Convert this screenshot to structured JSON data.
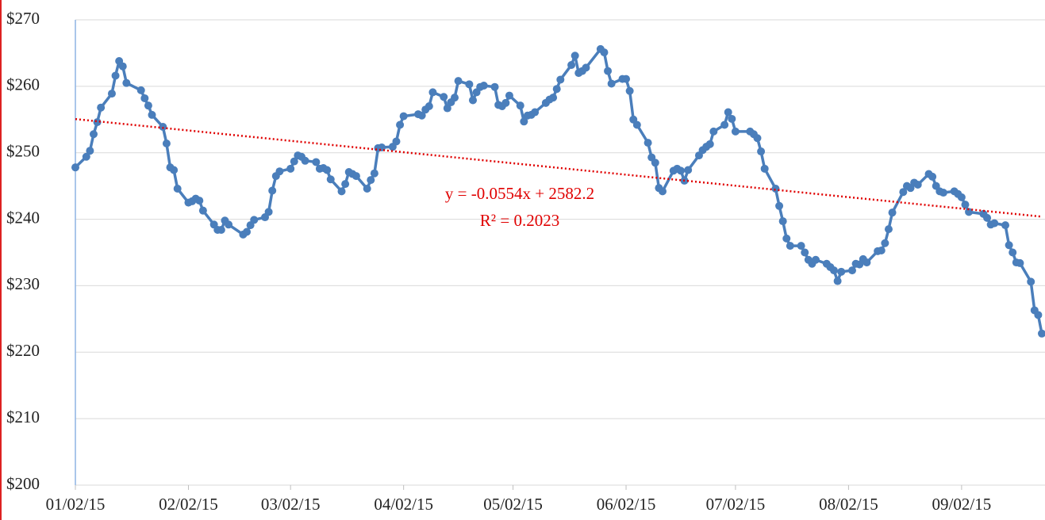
{
  "chart_data": {
    "type": "line",
    "x": [
      42006,
      42009,
      42010,
      42011,
      42012,
      42013,
      42016,
      42017,
      42018,
      42019,
      42020,
      42024,
      42025,
      42026,
      42027,
      42030,
      42031,
      42032,
      42033,
      42034,
      42037,
      42038,
      42039,
      42040,
      42041,
      42044,
      42045,
      42046,
      42047,
      42048,
      42052,
      42053,
      42054,
      42055,
      42058,
      42059,
      42060,
      42061,
      42062,
      42065,
      42066,
      42067,
      42068,
      42069,
      42072,
      42073,
      42074,
      42075,
      42076,
      42079,
      42080,
      42081,
      42082,
      42083,
      42086,
      42087,
      42088,
      42089,
      42090,
      42093,
      42094,
      42095,
      42096,
      42100,
      42101,
      42102,
      42103,
      42104,
      42107,
      42108,
      42109,
      42110,
      42111,
      42114,
      42115,
      42116,
      42117,
      42118,
      42121,
      42122,
      42123,
      42124,
      42125,
      42128,
      42129,
      42130,
      42131,
      42132,
      42135,
      42136,
      42137,
      42138,
      42139,
      42142,
      42143,
      42144,
      42145,
      42146,
      42150,
      42151,
      42152,
      42153,
      42156,
      42157,
      42158,
      42159,
      42160,
      42163,
      42164,
      42165,
      42166,
      42167,
      42170,
      42171,
      42172,
      42173,
      42174,
      42177,
      42178,
      42179,
      42180,
      42181,
      42184,
      42185,
      42186,
      42187,
      42191,
      42192,
      42193,
      42194,
      42195,
      42198,
      42199,
      42200,
      42201,
      42202,
      42205,
      42206,
      42207,
      42208,
      42209,
      42212,
      42213,
      42214,
      42215,
      42216,
      42219,
      42220,
      42221,
      42222,
      42223,
      42226,
      42227,
      42228,
      42229,
      42230,
      42233,
      42234,
      42235,
      42236,
      42237,
      42240,
      42241,
      42242,
      42243,
      42244,
      42247,
      42248,
      42249,
      42250,
      42251,
      42255,
      42256,
      42257,
      42258,
      42261,
      42262,
      42263,
      42264,
      42265,
      42268,
      42269,
      42270,
      42271
    ],
    "series": [
      {
        "color": "#4a7ebb",
        "values": [
          247.8,
          249.4,
          250.3,
          252.8,
          254.6,
          256.8,
          258.9,
          261.6,
          263.8,
          263,
          260.5,
          259.4,
          258.2,
          257.1,
          255.7,
          253.9,
          251.4,
          247.8,
          247.4,
          244.6,
          242.5,
          242.7,
          243.1,
          242.8,
          241.3,
          239.2,
          238.4,
          238.4,
          239.8,
          239.2,
          237.7,
          238.1,
          239.1,
          239.9,
          240.3,
          241.1,
          244.3,
          246.5,
          247.2,
          247.6,
          248.7,
          249.6,
          249.4,
          248.8,
          248.6,
          247.6,
          247.7,
          247.4,
          246,
          244.2,
          245.3,
          247.1,
          246.8,
          246.5,
          244.6,
          245.9,
          246.9,
          250.7,
          250.8,
          250.9,
          251.7,
          254.2,
          255.5,
          255.8,
          255.6,
          256.5,
          257,
          259.1,
          258.4,
          256.7,
          257.6,
          258.3,
          260.8,
          260.3,
          257.9,
          259.1,
          259.9,
          260.1,
          259.9,
          257.2,
          257,
          257.5,
          258.6,
          257.1,
          254.7,
          255.6,
          255.7,
          256.1,
          257.5,
          258,
          258.3,
          259.6,
          261,
          263.2,
          264.6,
          262,
          262.3,
          262.8,
          265.6,
          265.1,
          262.3,
          260.4,
          261.1,
          261.1,
          259.3,
          255,
          254.2,
          251.5,
          249.3,
          248.5,
          244.7,
          244.2,
          247.3,
          247.6,
          247.3,
          245.8,
          247.4,
          249.6,
          250.4,
          250.9,
          251.3,
          253.2,
          254.2,
          256.1,
          255.1,
          253.2,
          253.2,
          252.8,
          252.2,
          250.2,
          247.6,
          244.6,
          242,
          239.7,
          237.1,
          236,
          236,
          235,
          233.9,
          233.3,
          233.9,
          233.3,
          232.8,
          232.3,
          230.7,
          232.1,
          232.3,
          233.3,
          233.2,
          234,
          233.5,
          235.2,
          235.3,
          236.4,
          238.5,
          241,
          244.1,
          245,
          244.7,
          245.5,
          245.2,
          246.8,
          246.4,
          245,
          244.2,
          244,
          244.2,
          243.8,
          243.3,
          242.2,
          241.1,
          240.8,
          240.2,
          239.2,
          239.4,
          239.1,
          236.1,
          235,
          233.5,
          233.4,
          230.6,
          226.3,
          225.6,
          222.8
        ]
      }
    ],
    "xlim": [
      42006,
      42271
    ],
    "xticks": [
      {
        "value": 42006,
        "label": "01/02/15"
      },
      {
        "value": 42037,
        "label": "02/02/15"
      },
      {
        "value": 42065,
        "label": "03/02/15"
      },
      {
        "value": 42096,
        "label": "04/02/15"
      },
      {
        "value": 42126,
        "label": "05/02/15"
      },
      {
        "value": 42157,
        "label": "06/02/15"
      },
      {
        "value": 42187,
        "label": "07/02/15"
      },
      {
        "value": 42218,
        "label": "08/02/15"
      },
      {
        "value": 42249,
        "label": "09/02/15"
      }
    ],
    "ylim": [
      200,
      270
    ],
    "yticks": [
      {
        "value": 200,
        "label": "$200"
      },
      {
        "value": 210,
        "label": "$210"
      },
      {
        "value": 220,
        "label": "$220"
      },
      {
        "value": 230,
        "label": "$230"
      },
      {
        "value": 240,
        "label": "$240"
      },
      {
        "value": 250,
        "label": "$250"
      },
      {
        "value": 260,
        "label": "$260"
      },
      {
        "value": 270,
        "label": "$270"
      }
    ],
    "grid": true,
    "trendline": {
      "slope": -0.0554,
      "intercept": 2582.2,
      "color": "#e00000",
      "equation": "y = -0.0554x  + 2582.2",
      "r_squared": "R² = 0.2023"
    }
  }
}
